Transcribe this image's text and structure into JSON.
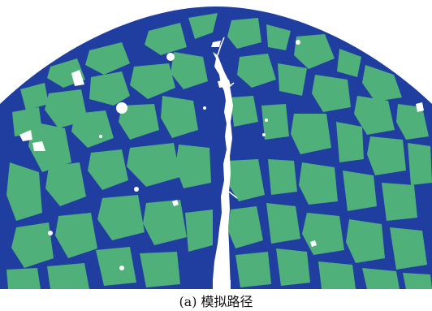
{
  "figure": {
    "caption": "(a) 模拟路径",
    "colors": {
      "matrix": "#203ea0",
      "aggregate": "#4fb07a",
      "void": "#ffffff",
      "background": "#ffffff"
    }
  }
}
